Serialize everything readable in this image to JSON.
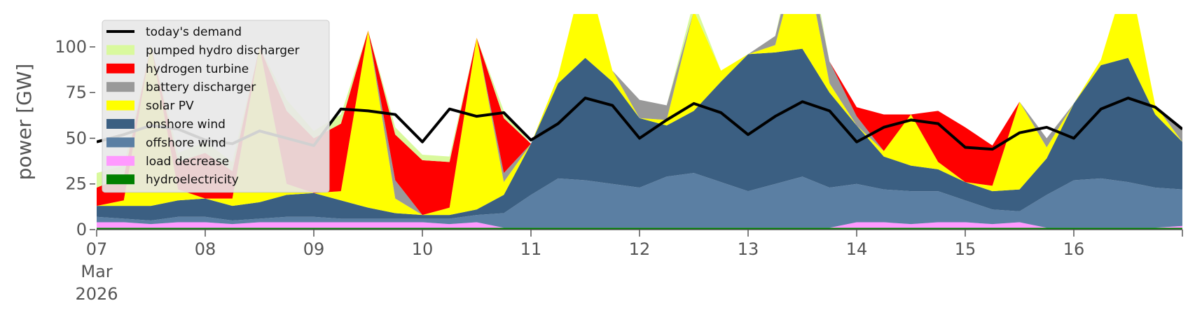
{
  "chart_data": {
    "type": "area",
    "ylabel": "power [GW]",
    "ylim": [
      0,
      118
    ],
    "xlim": [
      0,
      10
    ],
    "grid": false,
    "legend_position": "upper-left",
    "y_ticks": [
      0,
      25,
      50,
      75,
      100
    ],
    "x_ticks": [
      {
        "value": 0,
        "label": "07",
        "sublabels": [
          "Mar",
          "2026"
        ]
      },
      {
        "value": 1,
        "label": "08",
        "sublabels": []
      },
      {
        "value": 2,
        "label": "09",
        "sublabels": []
      },
      {
        "value": 3,
        "label": "10",
        "sublabels": []
      },
      {
        "value": 4,
        "label": "11",
        "sublabels": []
      },
      {
        "value": 5,
        "label": "12",
        "sublabels": []
      },
      {
        "value": 6,
        "label": "13",
        "sublabels": []
      },
      {
        "value": 7,
        "label": "14",
        "sublabels": []
      },
      {
        "value": 8,
        "label": "15",
        "sublabels": []
      },
      {
        "value": 9,
        "label": "16",
        "sublabels": []
      }
    ],
    "x": [
      0,
      0.25,
      0.5,
      0.75,
      1,
      1.25,
      1.5,
      1.75,
      2,
      2.25,
      2.5,
      2.75,
      3,
      3.25,
      3.5,
      3.75,
      4,
      4.25,
      4.5,
      4.75,
      5,
      5.25,
      5.5,
      5.75,
      6,
      6.25,
      6.5,
      6.75,
      7,
      7.25,
      7.5,
      7.75,
      8,
      8.25,
      8.5,
      8.75,
      9,
      9.25,
      9.5,
      9.75,
      10
    ],
    "series": [
      {
        "name": "hydroelectricity",
        "color": "#008000",
        "values": [
          1,
          1,
          1,
          1,
          1,
          1,
          1,
          1,
          1,
          1,
          1,
          1,
          1,
          1,
          1,
          1,
          1,
          1,
          1,
          1,
          1,
          1,
          1,
          1,
          1,
          1,
          1,
          1,
          1,
          1,
          1,
          1,
          1,
          1,
          1,
          1,
          1,
          1,
          1,
          1,
          1
        ]
      },
      {
        "name": "load decrease",
        "color": "#ff99ff",
        "values": [
          3,
          3,
          2,
          3,
          3,
          2,
          3,
          3,
          3,
          3,
          3,
          3,
          3,
          2,
          3,
          0,
          0,
          0,
          0,
          0,
          0,
          0,
          0,
          0,
          0,
          0,
          0,
          0,
          3,
          3,
          2,
          3,
          3,
          2,
          3,
          0,
          0,
          0,
          0,
          0,
          1
        ]
      },
      {
        "name": "offshore wind",
        "color": "#5b7fa3",
        "values": [
          3,
          2,
          2,
          3,
          3,
          2,
          2,
          3,
          3,
          2,
          2,
          2,
          2,
          3,
          4,
          8,
          18,
          27,
          26,
          24,
          22,
          28,
          30,
          25,
          20,
          24,
          28,
          22,
          21,
          18,
          18,
          17,
          12,
          8,
          6,
          18,
          26,
          27,
          25,
          22,
          20
        ]
      },
      {
        "name": "onshore wind",
        "color": "#3b5f82",
        "values": [
          6,
          7,
          8,
          9,
          10,
          8,
          9,
          12,
          13,
          10,
          6,
          3,
          2,
          2,
          3,
          10,
          28,
          52,
          67,
          56,
          38,
          28,
          34,
          55,
          75,
          72,
          70,
          52,
          32,
          18,
          14,
          12,
          10,
          10,
          12,
          20,
          42,
          62,
          68,
          40,
          26
        ]
      },
      {
        "name": "solar PV",
        "color": "#ffff00",
        "values": [
          0,
          3,
          88,
          6,
          0,
          4,
          85,
          6,
          0,
          5,
          97,
          8,
          0,
          4,
          94,
          7,
          0,
          4,
          50,
          6,
          0,
          3,
          55,
          6,
          0,
          4,
          58,
          5,
          0,
          3,
          28,
          4,
          0,
          3,
          48,
          6,
          0,
          3,
          48,
          5,
          0
        ]
      },
      {
        "name": "battery discharger",
        "color": "#999999",
        "values": [
          0,
          0,
          0,
          0,
          0,
          0,
          0,
          0,
          0,
          0,
          0,
          10,
          0,
          0,
          0,
          5,
          0,
          0,
          0,
          0,
          10,
          8,
          0,
          0,
          0,
          5,
          8,
          12,
          5,
          0,
          0,
          0,
          0,
          0,
          0,
          5,
          0,
          0,
          0,
          0,
          8
        ]
      },
      {
        "name": "hydrogen turbine",
        "color": "#ff0000",
        "values": [
          10,
          13,
          0,
          15,
          25,
          15,
          0,
          40,
          30,
          37,
          0,
          25,
          30,
          25,
          0,
          30,
          0,
          0,
          0,
          0,
          0,
          0,
          0,
          0,
          0,
          0,
          0,
          0,
          5,
          20,
          0,
          28,
          30,
          22,
          0,
          0,
          0,
          0,
          0,
          0,
          0
        ]
      },
      {
        "name": "pumped hydro discharger",
        "color": "#d9f99d",
        "values": [
          8,
          6,
          0,
          5,
          6,
          5,
          0,
          6,
          4,
          5,
          0,
          4,
          3,
          3,
          0,
          4,
          0,
          0,
          0,
          0,
          0,
          0,
          5,
          0,
          0,
          0,
          8,
          0,
          0,
          0,
          0,
          0,
          0,
          0,
          0,
          0,
          0,
          0,
          0,
          0,
          0
        ]
      }
    ],
    "lines": [
      {
        "name": "today's demand",
        "color": "#000000",
        "values": [
          48,
          52,
          57,
          55,
          49,
          47,
          54,
          50,
          46,
          66,
          65,
          63,
          48,
          66,
          62,
          64,
          49,
          58,
          72,
          68,
          50,
          60,
          69,
          64,
          52,
          62,
          70,
          65,
          48,
          56,
          60,
          58,
          45,
          44,
          53,
          56,
          50,
          66,
          72,
          67,
          55
        ]
      }
    ],
    "legend": [
      "today's demand",
      "pumped hydro discharger",
      "hydrogen turbine",
      "battery discharger",
      "solar PV",
      "onshore wind",
      "offshore wind",
      "load decrease",
      "hydroelectricity"
    ]
  }
}
